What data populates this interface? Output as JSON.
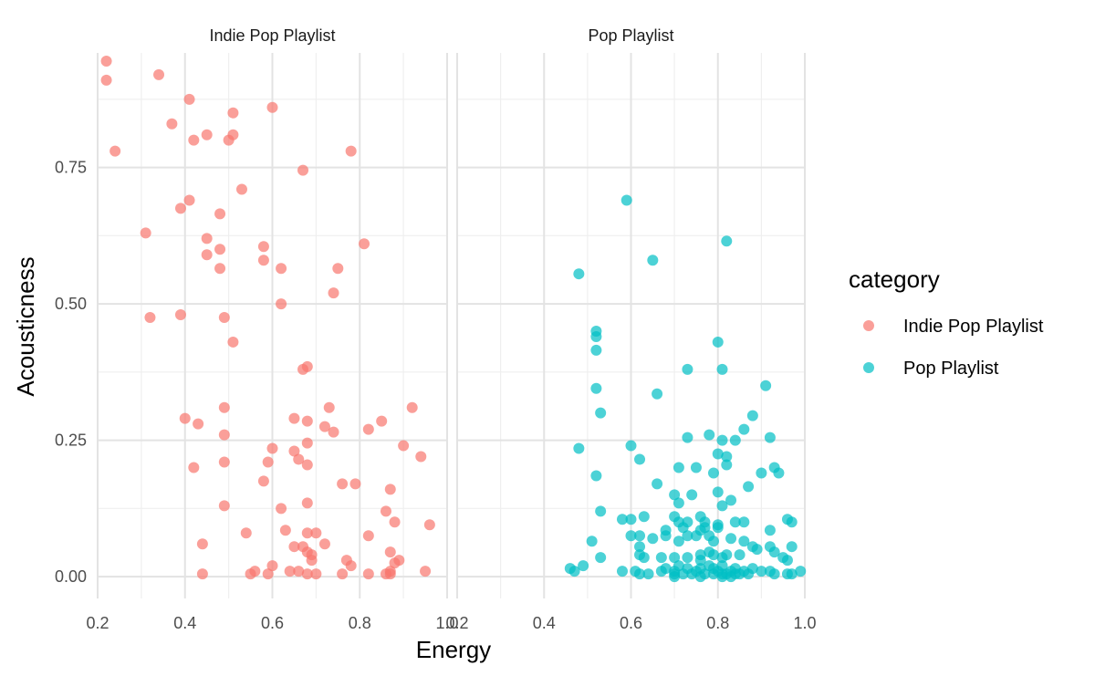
{
  "chart_data": {
    "type": "scatter",
    "xlabel": "Energy",
    "ylabel": "Acousticness",
    "xlim": [
      0.2,
      1.0
    ],
    "ylim": [
      -0.04,
      0.96
    ],
    "x_ticks": [
      "0.2",
      "0.4",
      "0.6",
      "0.8",
      "1.0"
    ],
    "y_ticks": [
      "0.00",
      "0.25",
      "0.50",
      "0.75"
    ],
    "x_tick_values": [
      0.2,
      0.4,
      0.6,
      0.8,
      1.0
    ],
    "y_tick_values": [
      0,
      0.25,
      0.5,
      0.75
    ],
    "x_minor_values": [
      0.3,
      0.5,
      0.7,
      0.9
    ],
    "y_minor_values": [
      0.125,
      0.375,
      0.625,
      0.875
    ],
    "legend": {
      "title": "category",
      "entries": [
        "Indie Pop Playlist",
        "Pop Playlist"
      ],
      "placement": "right"
    },
    "grid": true,
    "series": [
      {
        "name": "Indie Pop Playlist",
        "color": "#F8766D",
        "points": [
          [
            0.22,
            0.945
          ],
          [
            0.22,
            0.91
          ],
          [
            0.34,
            0.92
          ],
          [
            0.24,
            0.78
          ],
          [
            0.41,
            0.875
          ],
          [
            0.37,
            0.83
          ],
          [
            0.45,
            0.81
          ],
          [
            0.42,
            0.8
          ],
          [
            0.51,
            0.85
          ],
          [
            0.51,
            0.81
          ],
          [
            0.5,
            0.8
          ],
          [
            0.6,
            0.86
          ],
          [
            0.78,
            0.78
          ],
          [
            0.67,
            0.745
          ],
          [
            0.53,
            0.71
          ],
          [
            0.41,
            0.69
          ],
          [
            0.39,
            0.675
          ],
          [
            0.48,
            0.665
          ],
          [
            0.31,
            0.63
          ],
          [
            0.45,
            0.62
          ],
          [
            0.48,
            0.6
          ],
          [
            0.45,
            0.59
          ],
          [
            0.58,
            0.605
          ],
          [
            0.58,
            0.58
          ],
          [
            0.48,
            0.565
          ],
          [
            0.62,
            0.565
          ],
          [
            0.75,
            0.565
          ],
          [
            0.81,
            0.61
          ],
          [
            0.74,
            0.52
          ],
          [
            0.62,
            0.5
          ],
          [
            0.32,
            0.475
          ],
          [
            0.39,
            0.48
          ],
          [
            0.49,
            0.475
          ],
          [
            0.51,
            0.43
          ],
          [
            0.68,
            0.385
          ],
          [
            0.67,
            0.38
          ],
          [
            0.49,
            0.31
          ],
          [
            0.73,
            0.31
          ],
          [
            0.92,
            0.31
          ],
          [
            0.4,
            0.29
          ],
          [
            0.43,
            0.28
          ],
          [
            0.65,
            0.29
          ],
          [
            0.68,
            0.285
          ],
          [
            0.72,
            0.275
          ],
          [
            0.74,
            0.265
          ],
          [
            0.85,
            0.285
          ],
          [
            0.82,
            0.27
          ],
          [
            0.49,
            0.26
          ],
          [
            0.6,
            0.235
          ],
          [
            0.65,
            0.23
          ],
          [
            0.68,
            0.245
          ],
          [
            0.9,
            0.24
          ],
          [
            0.94,
            0.22
          ],
          [
            0.66,
            0.215
          ],
          [
            0.42,
            0.2
          ],
          [
            0.49,
            0.21
          ],
          [
            0.59,
            0.21
          ],
          [
            0.68,
            0.205
          ],
          [
            0.58,
            0.175
          ],
          [
            0.76,
            0.17
          ],
          [
            0.79,
            0.17
          ],
          [
            0.87,
            0.16
          ],
          [
            0.49,
            0.13
          ],
          [
            0.62,
            0.125
          ],
          [
            0.68,
            0.135
          ],
          [
            0.86,
            0.12
          ],
          [
            0.88,
            0.1
          ],
          [
            0.96,
            0.095
          ],
          [
            0.54,
            0.08
          ],
          [
            0.63,
            0.085
          ],
          [
            0.68,
            0.08
          ],
          [
            0.7,
            0.08
          ],
          [
            0.82,
            0.075
          ],
          [
            0.44,
            0.06
          ],
          [
            0.65,
            0.055
          ],
          [
            0.67,
            0.055
          ],
          [
            0.68,
            0.045
          ],
          [
            0.69,
            0.04
          ],
          [
            0.72,
            0.06
          ],
          [
            0.77,
            0.03
          ],
          [
            0.78,
            0.02
          ],
          [
            0.87,
            0.045
          ],
          [
            0.89,
            0.03
          ],
          [
            0.88,
            0.025
          ],
          [
            0.44,
            0.005
          ],
          [
            0.55,
            0.005
          ],
          [
            0.56,
            0.01
          ],
          [
            0.59,
            0.005
          ],
          [
            0.6,
            0.02
          ],
          [
            0.64,
            0.01
          ],
          [
            0.66,
            0.01
          ],
          [
            0.68,
            0.005
          ],
          [
            0.69,
            0.03
          ],
          [
            0.7,
            0.005
          ],
          [
            0.76,
            0.005
          ],
          [
            0.82,
            0.005
          ],
          [
            0.86,
            0.005
          ],
          [
            0.87,
            0.005
          ],
          [
            0.87,
            0.01
          ],
          [
            0.95,
            0.01
          ]
        ]
      },
      {
        "name": "Pop Playlist",
        "color": "#00BFC4",
        "points": [
          [
            0.59,
            0.69
          ],
          [
            0.82,
            0.615
          ],
          [
            0.65,
            0.58
          ],
          [
            0.48,
            0.555
          ],
          [
            0.52,
            0.45
          ],
          [
            0.52,
            0.44
          ],
          [
            0.52,
            0.415
          ],
          [
            0.8,
            0.43
          ],
          [
            0.81,
            0.38
          ],
          [
            0.73,
            0.38
          ],
          [
            0.52,
            0.345
          ],
          [
            0.66,
            0.335
          ],
          [
            0.91,
            0.35
          ],
          [
            0.53,
            0.3
          ],
          [
            0.88,
            0.295
          ],
          [
            0.86,
            0.27
          ],
          [
            0.78,
            0.26
          ],
          [
            0.73,
            0.255
          ],
          [
            0.81,
            0.25
          ],
          [
            0.84,
            0.25
          ],
          [
            0.92,
            0.255
          ],
          [
            0.6,
            0.24
          ],
          [
            0.48,
            0.235
          ],
          [
            0.62,
            0.215
          ],
          [
            0.8,
            0.225
          ],
          [
            0.82,
            0.22
          ],
          [
            0.82,
            0.205
          ],
          [
            0.71,
            0.2
          ],
          [
            0.75,
            0.2
          ],
          [
            0.79,
            0.19
          ],
          [
            0.9,
            0.19
          ],
          [
            0.93,
            0.2
          ],
          [
            0.94,
            0.19
          ],
          [
            0.52,
            0.185
          ],
          [
            0.66,
            0.17
          ],
          [
            0.87,
            0.165
          ],
          [
            0.7,
            0.15
          ],
          [
            0.74,
            0.15
          ],
          [
            0.8,
            0.155
          ],
          [
            0.83,
            0.14
          ],
          [
            0.81,
            0.13
          ],
          [
            0.71,
            0.135
          ],
          [
            0.53,
            0.12
          ],
          [
            0.58,
            0.105
          ],
          [
            0.6,
            0.105
          ],
          [
            0.63,
            0.11
          ],
          [
            0.7,
            0.11
          ],
          [
            0.71,
            0.1
          ],
          [
            0.72,
            0.09
          ],
          [
            0.73,
            0.1
          ],
          [
            0.76,
            0.11
          ],
          [
            0.77,
            0.1
          ],
          [
            0.76,
            0.085
          ],
          [
            0.77,
            0.09
          ],
          [
            0.8,
            0.095
          ],
          [
            0.8,
            0.09
          ],
          [
            0.84,
            0.1
          ],
          [
            0.86,
            0.1
          ],
          [
            0.92,
            0.085
          ],
          [
            0.96,
            0.105
          ],
          [
            0.97,
            0.1
          ],
          [
            0.6,
            0.075
          ],
          [
            0.62,
            0.075
          ],
          [
            0.65,
            0.07
          ],
          [
            0.68,
            0.085
          ],
          [
            0.68,
            0.075
          ],
          [
            0.71,
            0.065
          ],
          [
            0.73,
            0.075
          ],
          [
            0.75,
            0.075
          ],
          [
            0.78,
            0.075
          ],
          [
            0.79,
            0.065
          ],
          [
            0.83,
            0.07
          ],
          [
            0.86,
            0.065
          ],
          [
            0.88,
            0.055
          ],
          [
            0.89,
            0.05
          ],
          [
            0.92,
            0.055
          ],
          [
            0.97,
            0.055
          ],
          [
            0.51,
            0.065
          ],
          [
            0.53,
            0.035
          ],
          [
            0.62,
            0.055
          ],
          [
            0.62,
            0.04
          ],
          [
            0.63,
            0.035
          ],
          [
            0.67,
            0.035
          ],
          [
            0.7,
            0.035
          ],
          [
            0.73,
            0.035
          ],
          [
            0.76,
            0.04
          ],
          [
            0.76,
            0.03
          ],
          [
            0.78,
            0.045
          ],
          [
            0.79,
            0.04
          ],
          [
            0.81,
            0.035
          ],
          [
            0.82,
            0.04
          ],
          [
            0.85,
            0.04
          ],
          [
            0.93,
            0.045
          ],
          [
            0.95,
            0.035
          ],
          [
            0.96,
            0.03
          ],
          [
            0.46,
            0.015
          ],
          [
            0.47,
            0.01
          ],
          [
            0.49,
            0.02
          ],
          [
            0.58,
            0.01
          ],
          [
            0.61,
            0.01
          ],
          [
            0.62,
            0.005
          ],
          [
            0.64,
            0.005
          ],
          [
            0.67,
            0.01
          ],
          [
            0.68,
            0.015
          ],
          [
            0.7,
            0.01
          ],
          [
            0.7,
            0.005
          ],
          [
            0.71,
            0.02
          ],
          [
            0.72,
            0.005
          ],
          [
            0.73,
            0.015
          ],
          [
            0.74,
            0.005
          ],
          [
            0.75,
            0.01
          ],
          [
            0.76,
            0.015
          ],
          [
            0.77,
            0.005
          ],
          [
            0.78,
            0.02
          ],
          [
            0.79,
            0.015
          ],
          [
            0.79,
            0.005
          ],
          [
            0.8,
            0.01
          ],
          [
            0.81,
            0.02
          ],
          [
            0.81,
            0.005
          ],
          [
            0.82,
            0.005
          ],
          [
            0.83,
            0.01
          ],
          [
            0.84,
            0.015
          ],
          [
            0.84,
            0.005
          ],
          [
            0.85,
            0.005
          ],
          [
            0.86,
            0.01
          ],
          [
            0.87,
            0.005
          ],
          [
            0.88,
            0.015
          ],
          [
            0.9,
            0.01
          ],
          [
            0.92,
            0.01
          ],
          [
            0.93,
            0.005
          ],
          [
            0.96,
            0.005
          ],
          [
            0.97,
            0.005
          ],
          [
            0.99,
            0.01
          ],
          [
            0.7,
            0.0
          ],
          [
            0.76,
            0.0
          ],
          [
            0.81,
            0.0
          ],
          [
            0.83,
            0.0
          ]
        ]
      }
    ]
  }
}
